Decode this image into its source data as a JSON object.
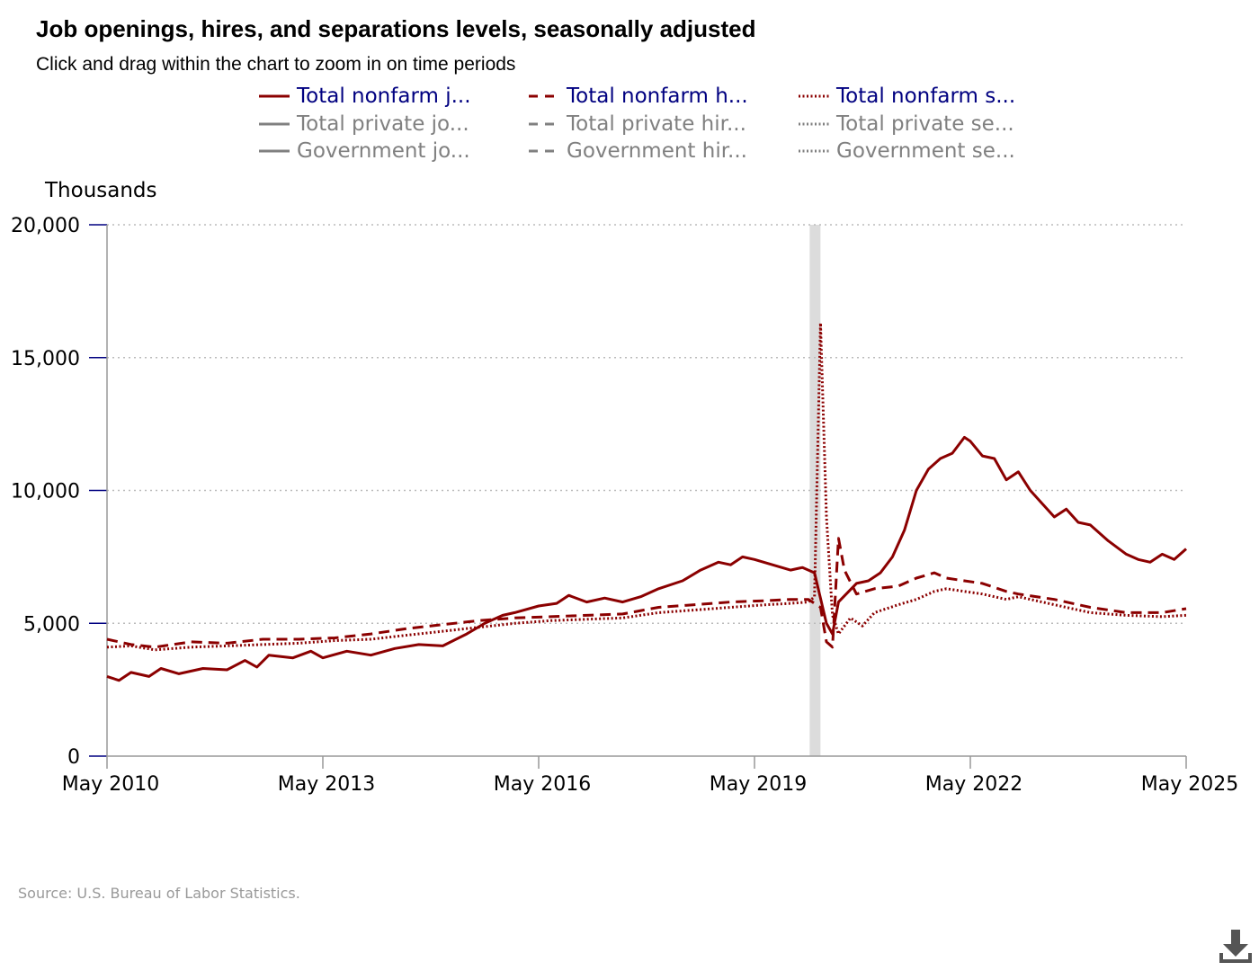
{
  "title": "Job openings, hires, and separations levels, seasonally adjusted",
  "subtitle": "Click and drag within the chart to zoom in on time periods",
  "source": "Source: U.S. Bureau of Labor Statistics.",
  "download_icon": "download-icon",
  "colors": {
    "series": "#8b0000",
    "inactive": "#808080",
    "active_label": "#000080",
    "grid": "#bbbbbb",
    "recession": "#dcdcdc"
  },
  "legend": [
    {
      "label": "Total nonfarm j...",
      "style": "solid",
      "active": true
    },
    {
      "label": "Total nonfarm h...",
      "style": "dashed",
      "active": true
    },
    {
      "label": "Total nonfarm s...",
      "style": "dotted",
      "active": true
    },
    {
      "label": "Total private jo...",
      "style": "solid",
      "active": false
    },
    {
      "label": "Total private hir...",
      "style": "dashed",
      "active": false
    },
    {
      "label": "Total private se...",
      "style": "dotted",
      "active": false
    },
    {
      "label": "Government jo...",
      "style": "solid",
      "active": false
    },
    {
      "label": "Government hir...",
      "style": "dashed",
      "active": false
    },
    {
      "label": "Government se...",
      "style": "dotted",
      "active": false
    }
  ],
  "chart_data": {
    "type": "line",
    "title": "Job openings, hires, and separations levels, seasonally adjusted",
    "ylabel": "Thousands",
    "ylim": [
      0,
      20000
    ],
    "yticks": [
      0,
      5000,
      10000,
      15000,
      20000
    ],
    "ytick_labels": [
      "0",
      "5,000",
      "10,000",
      "15,000",
      "20,000"
    ],
    "xlim": [
      2010.333,
      2025.333
    ],
    "xticks": [
      2010.333,
      2013.333,
      2016.333,
      2019.333,
      2022.333,
      2025.333
    ],
    "xtick_labels": [
      "May 2010",
      "May 2013",
      "May 2016",
      "May 2019",
      "May 2022",
      "May 2025"
    ],
    "recession": [
      2020.1,
      2020.25
    ],
    "grid": "horizontal-dotted",
    "legend_position": "top",
    "series": [
      {
        "name": "Total nonfarm job openings",
        "style": "solid",
        "points": [
          [
            2010.333,
            3000
          ],
          [
            2010.5,
            2850
          ],
          [
            2010.667,
            3150
          ],
          [
            2010.917,
            3000
          ],
          [
            2011.083,
            3300
          ],
          [
            2011.333,
            3100
          ],
          [
            2011.667,
            3300
          ],
          [
            2012.0,
            3250
          ],
          [
            2012.25,
            3600
          ],
          [
            2012.417,
            3350
          ],
          [
            2012.583,
            3800
          ],
          [
            2012.917,
            3700
          ],
          [
            2013.167,
            3950
          ],
          [
            2013.333,
            3700
          ],
          [
            2013.667,
            3950
          ],
          [
            2014.0,
            3800
          ],
          [
            2014.333,
            4050
          ],
          [
            2014.667,
            4200
          ],
          [
            2015.0,
            4150
          ],
          [
            2015.333,
            4600
          ],
          [
            2015.583,
            5000
          ],
          [
            2015.833,
            5300
          ],
          [
            2016.0,
            5400
          ],
          [
            2016.333,
            5650
          ],
          [
            2016.583,
            5750
          ],
          [
            2016.75,
            6050
          ],
          [
            2017.0,
            5800
          ],
          [
            2017.25,
            5950
          ],
          [
            2017.5,
            5800
          ],
          [
            2017.75,
            6000
          ],
          [
            2018.0,
            6300
          ],
          [
            2018.333,
            6600
          ],
          [
            2018.583,
            7000
          ],
          [
            2018.833,
            7300
          ],
          [
            2019.0,
            7200
          ],
          [
            2019.167,
            7500
          ],
          [
            2019.333,
            7400
          ],
          [
            2019.583,
            7200
          ],
          [
            2019.833,
            7000
          ],
          [
            2020.0,
            7100
          ],
          [
            2020.167,
            6900
          ],
          [
            2020.333,
            5000
          ],
          [
            2020.417,
            4600
          ],
          [
            2020.5,
            5800
          ],
          [
            2020.75,
            6500
          ],
          [
            2020.917,
            6600
          ],
          [
            2021.083,
            6900
          ],
          [
            2021.25,
            7500
          ],
          [
            2021.417,
            8500
          ],
          [
            2021.583,
            10000
          ],
          [
            2021.75,
            10800
          ],
          [
            2021.917,
            11200
          ],
          [
            2022.083,
            11400
          ],
          [
            2022.25,
            12000
          ],
          [
            2022.333,
            11850
          ],
          [
            2022.5,
            11300
          ],
          [
            2022.667,
            11200
          ],
          [
            2022.833,
            10400
          ],
          [
            2023.0,
            10700
          ],
          [
            2023.167,
            10000
          ],
          [
            2023.333,
            9500
          ],
          [
            2023.5,
            9000
          ],
          [
            2023.667,
            9300
          ],
          [
            2023.833,
            8800
          ],
          [
            2024.0,
            8700
          ],
          [
            2024.25,
            8100
          ],
          [
            2024.5,
            7600
          ],
          [
            2024.667,
            7400
          ],
          [
            2024.833,
            7300
          ],
          [
            2025.0,
            7600
          ],
          [
            2025.167,
            7400
          ],
          [
            2025.333,
            7800
          ]
        ]
      },
      {
        "name": "Total nonfarm hires",
        "style": "dashed",
        "points": [
          [
            2010.333,
            4400
          ],
          [
            2010.667,
            4200
          ],
          [
            2011.0,
            4100
          ],
          [
            2011.5,
            4300
          ],
          [
            2012.0,
            4250
          ],
          [
            2012.5,
            4400
          ],
          [
            2013.0,
            4400
          ],
          [
            2013.5,
            4450
          ],
          [
            2014.0,
            4600
          ],
          [
            2014.5,
            4800
          ],
          [
            2015.0,
            4950
          ],
          [
            2015.5,
            5100
          ],
          [
            2016.0,
            5200
          ],
          [
            2016.5,
            5250
          ],
          [
            2017.0,
            5300
          ],
          [
            2017.5,
            5350
          ],
          [
            2018.0,
            5600
          ],
          [
            2018.5,
            5700
          ],
          [
            2019.0,
            5800
          ],
          [
            2019.5,
            5850
          ],
          [
            2019.833,
            5900
          ],
          [
            2020.083,
            5900
          ],
          [
            2020.25,
            5600
          ],
          [
            2020.333,
            4300
          ],
          [
            2020.417,
            4100
          ],
          [
            2020.5,
            8200
          ],
          [
            2020.583,
            7000
          ],
          [
            2020.75,
            6100
          ],
          [
            2021.0,
            6300
          ],
          [
            2021.333,
            6400
          ],
          [
            2021.583,
            6700
          ],
          [
            2021.833,
            6900
          ],
          [
            2022.0,
            6700
          ],
          [
            2022.25,
            6600
          ],
          [
            2022.5,
            6500
          ],
          [
            2022.833,
            6200
          ],
          [
            2023.0,
            6100
          ],
          [
            2023.5,
            5900
          ],
          [
            2024.0,
            5600
          ],
          [
            2024.5,
            5400
          ],
          [
            2025.0,
            5400
          ],
          [
            2025.333,
            5550
          ]
        ]
      },
      {
        "name": "Total nonfarm separations",
        "style": "dotted",
        "points": [
          [
            2010.333,
            4100
          ],
          [
            2010.667,
            4150
          ],
          [
            2011.0,
            4000
          ],
          [
            2011.5,
            4100
          ],
          [
            2012.0,
            4150
          ],
          [
            2012.5,
            4200
          ],
          [
            2013.0,
            4250
          ],
          [
            2013.5,
            4350
          ],
          [
            2014.0,
            4400
          ],
          [
            2014.5,
            4550
          ],
          [
            2015.0,
            4700
          ],
          [
            2015.5,
            4850
          ],
          [
            2016.0,
            5000
          ],
          [
            2016.5,
            5100
          ],
          [
            2017.0,
            5150
          ],
          [
            2017.5,
            5200
          ],
          [
            2018.0,
            5400
          ],
          [
            2018.5,
            5500
          ],
          [
            2019.0,
            5600
          ],
          [
            2019.5,
            5700
          ],
          [
            2019.833,
            5750
          ],
          [
            2020.083,
            5800
          ],
          [
            2020.167,
            6000
          ],
          [
            2020.25,
            16300
          ],
          [
            2020.333,
            9000
          ],
          [
            2020.417,
            5300
          ],
          [
            2020.5,
            4600
          ],
          [
            2020.667,
            5200
          ],
          [
            2020.833,
            4900
          ],
          [
            2021.0,
            5400
          ],
          [
            2021.333,
            5700
          ],
          [
            2021.583,
            5900
          ],
          [
            2021.833,
            6200
          ],
          [
            2022.0,
            6300
          ],
          [
            2022.25,
            6200
          ],
          [
            2022.5,
            6100
          ],
          [
            2022.833,
            5900
          ],
          [
            2023.0,
            6000
          ],
          [
            2023.5,
            5700
          ],
          [
            2024.0,
            5400
          ],
          [
            2024.5,
            5300
          ],
          [
            2025.0,
            5250
          ],
          [
            2025.333,
            5300
          ]
        ]
      }
    ]
  }
}
